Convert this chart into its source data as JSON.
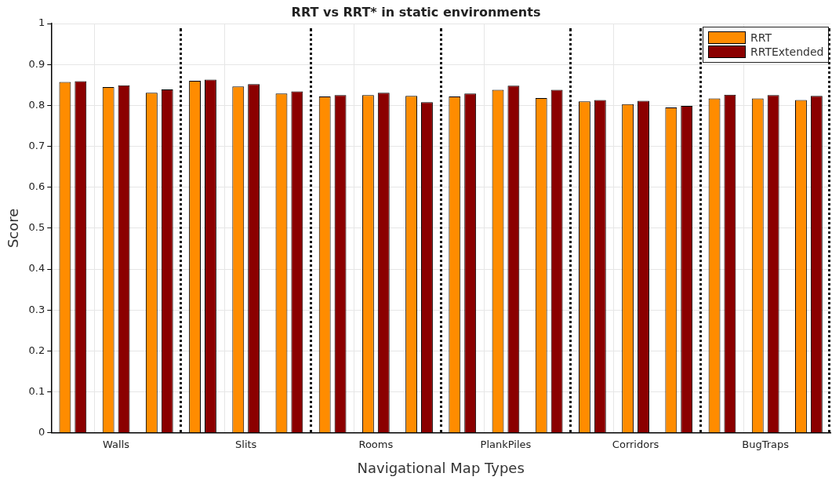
{
  "chart_data": {
    "type": "bar",
    "title": "RRT vs RRT* in static environments",
    "xlabel": "Navigational Map Types",
    "ylabel": "Score",
    "categories": [
      null,
      "Walls",
      null,
      null,
      "Slits",
      null,
      null,
      "Rooms",
      null,
      null,
      "PlankPiles",
      null,
      null,
      "Corridors",
      null,
      null,
      "BugTraps",
      null
    ],
    "series": [
      {
        "name": "RRT",
        "color": "#ff8c00",
        "values": [
          0.857,
          0.845,
          0.831,
          0.86,
          0.846,
          0.829,
          0.822,
          0.825,
          0.823,
          0.822,
          0.838,
          0.818,
          0.81,
          0.803,
          0.795,
          0.817,
          0.817,
          0.813
        ]
      },
      {
        "name": "RRTExtended",
        "color": "#8b0000",
        "values": [
          0.859,
          0.849,
          0.839,
          0.863,
          0.852,
          0.834,
          0.825,
          0.831,
          0.808,
          0.829,
          0.848,
          0.838,
          0.813,
          0.811,
          0.799,
          0.826,
          0.825,
          0.823
        ]
      }
    ],
    "ylim": [
      0,
      1
    ],
    "yticks": [
      0,
      0.1,
      0.2,
      0.3,
      0.4,
      0.5,
      0.6,
      0.7,
      0.8,
      0.9,
      1
    ],
    "grid": true,
    "legend": "top right"
  }
}
